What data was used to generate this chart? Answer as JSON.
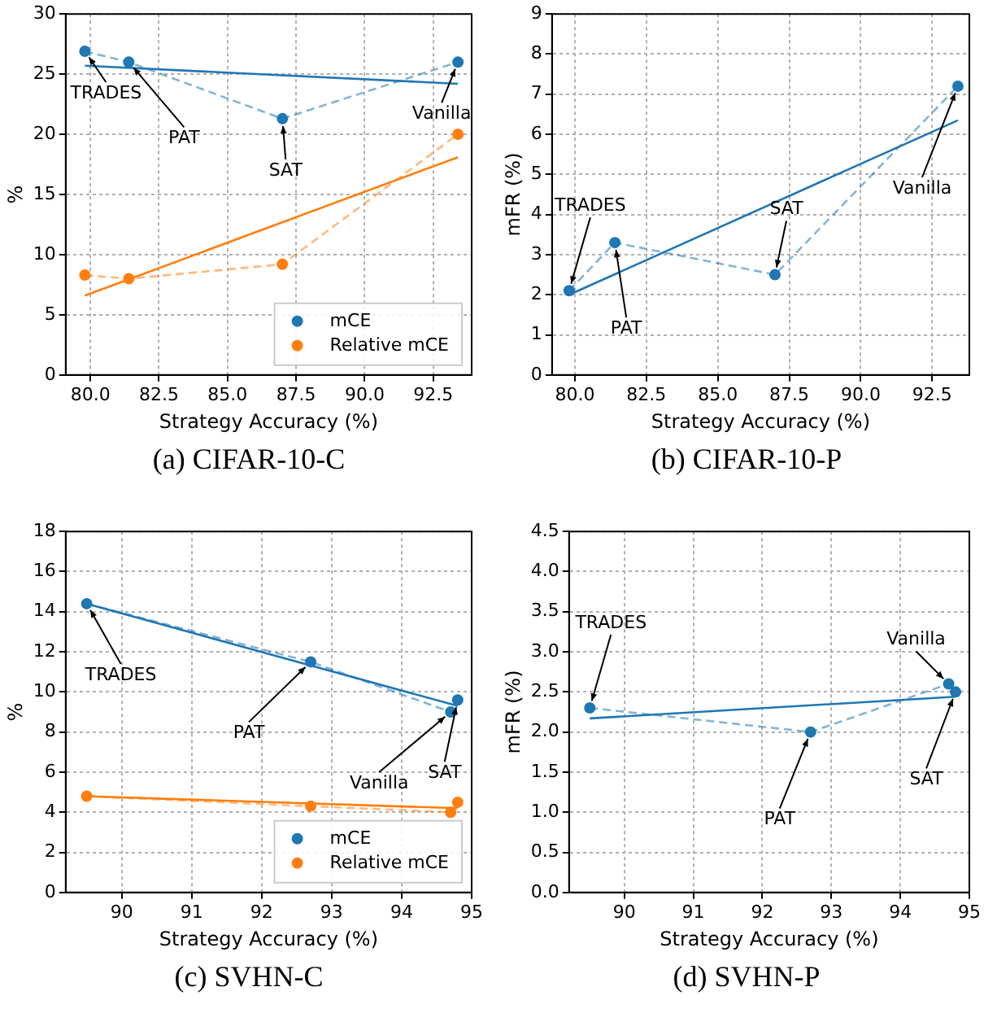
{
  "chart_data": [
    {
      "type": "line",
      "title": "(a) CIFAR-10-C",
      "xlabel": "Strategy Accuracy (%)",
      "ylabel": "%",
      "xlim": [
        79.1,
        93.9
      ],
      "xticks": [
        {
          "value": 80,
          "label": "80.0"
        },
        {
          "value": 82.5,
          "label": "82.5"
        },
        {
          "value": 85,
          "label": "85.0"
        },
        {
          "value": 87.5,
          "label": "87.5"
        },
        {
          "value": 90,
          "label": "90.0"
        },
        {
          "value": 92.5,
          "label": "92.5"
        }
      ],
      "ylim": [
        0,
        30
      ],
      "yticks": [
        0,
        5,
        10,
        15,
        20,
        25,
        30
      ],
      "grid": true,
      "legend": "bottom right",
      "series": [
        {
          "name": "mCE",
          "color": "#1f77b4",
          "x": [
            79.8,
            81.4,
            87.0,
            93.4
          ],
          "values": [
            26.9,
            26.0,
            21.3,
            26.0
          ],
          "line_style": "dashed",
          "marker": "circle"
        },
        {
          "name": "Relative mCE",
          "color": "#ff7f0e",
          "x": [
            79.8,
            81.4,
            87.0,
            93.4
          ],
          "values": [
            8.3,
            8.0,
            9.2,
            20.0
          ],
          "line_style": "dashed",
          "marker": "circle"
        },
        {
          "color": "#1f77b4",
          "x": [
            79.8,
            93.4
          ],
          "values": [
            25.7,
            24.2
          ],
          "line_style": "solid",
          "marker": "none"
        },
        {
          "color": "#ff7f0e",
          "x": [
            79.8,
            93.4
          ],
          "values": [
            6.6,
            18.1
          ],
          "line_style": "solid",
          "marker": "none"
        }
      ],
      "annotations": [
        {
          "text": "TRADES",
          "x": 79.8,
          "y": 26.9
        },
        {
          "text": "PAT",
          "x": 81.4,
          "y": 26.0
        },
        {
          "text": "SAT",
          "x": 87.0,
          "y": 21.3
        },
        {
          "text": "Vanilla",
          "x": 93.4,
          "y": 26.0
        }
      ]
    },
    {
      "type": "line",
      "title": "(b) CIFAR-10-P",
      "xlabel": "Strategy Accuracy (%)",
      "ylabel": "mFR (%)",
      "xlim": [
        79.2,
        93.8
      ],
      "xticks": [
        {
          "value": 80,
          "label": "80.0"
        },
        {
          "value": 82.5,
          "label": "82.5"
        },
        {
          "value": 85,
          "label": "85.0"
        },
        {
          "value": 87.5,
          "label": "87.5"
        },
        {
          "value": 90,
          "label": "90.0"
        },
        {
          "value": 92.5,
          "label": "92.5"
        }
      ],
      "ylim": [
        0,
        9
      ],
      "yticks": [
        0,
        1,
        2,
        3,
        4,
        5,
        6,
        7,
        8,
        9
      ],
      "grid": true,
      "series": [
        {
          "color": "#1f77b4",
          "x": [
            79.8,
            81.4,
            87.0,
            93.4
          ],
          "values": [
            2.1,
            3.3,
            2.5,
            7.2
          ],
          "line_style": "dashed",
          "marker": "circle"
        },
        {
          "color": "#1f77b4",
          "x": [
            79.8,
            93.4
          ],
          "values": [
            2.0,
            6.35
          ],
          "line_style": "solid",
          "marker": "none"
        }
      ],
      "annotations": [
        {
          "text": "TRADES",
          "x": 79.8,
          "y": 2.1
        },
        {
          "text": "PAT",
          "x": 81.4,
          "y": 3.3
        },
        {
          "text": "SAT",
          "x": 87.0,
          "y": 2.5
        },
        {
          "text": "Vanilla",
          "x": 93.4,
          "y": 7.2
        }
      ]
    },
    {
      "type": "line",
      "title": "(c) SVHN-C",
      "xlabel": "Strategy Accuracy (%)",
      "ylabel": "%",
      "xlim": [
        89.2,
        95
      ],
      "xticks": [
        90,
        91,
        92,
        93,
        94,
        95
      ],
      "ylim": [
        0,
        18
      ],
      "yticks": [
        0,
        2,
        4,
        6,
        8,
        10,
        12,
        14,
        16,
        18
      ],
      "grid": true,
      "legend": "bottom right",
      "series": [
        {
          "name": "mCE",
          "color": "#1f77b4",
          "x": [
            89.5,
            92.7,
            94.7,
            94.8
          ],
          "values": [
            14.4,
            11.5,
            9.0,
            9.6
          ],
          "line_style": "dashed",
          "marker": "circle"
        },
        {
          "name": "Relative mCE",
          "color": "#ff7f0e",
          "x": [
            89.5,
            92.7,
            94.7,
            94.8
          ],
          "values": [
            4.8,
            4.3,
            4.0,
            4.5
          ],
          "line_style": "dashed",
          "marker": "circle"
        },
        {
          "color": "#1f77b4",
          "x": [
            89.5,
            94.8
          ],
          "values": [
            14.4,
            9.3
          ],
          "line_style": "solid",
          "marker": "none"
        },
        {
          "color": "#ff7f0e",
          "x": [
            89.5,
            94.8
          ],
          "values": [
            4.8,
            4.2
          ],
          "line_style": "solid",
          "marker": "none"
        }
      ],
      "annotations": [
        {
          "text": "TRADES",
          "x": 89.5,
          "y": 14.4
        },
        {
          "text": "PAT",
          "x": 92.7,
          "y": 11.5
        },
        {
          "text": "Vanilla",
          "x": 94.7,
          "y": 9.0
        },
        {
          "text": "SAT",
          "x": 94.8,
          "y": 9.6
        }
      ]
    },
    {
      "type": "line",
      "title": "(d) SVHN-P",
      "xlabel": "Strategy Accuracy (%)",
      "ylabel": "mFR (%)",
      "xlim": [
        89.2,
        95
      ],
      "xticks": [
        90,
        91,
        92,
        93,
        94,
        95
      ],
      "ylim": [
        0,
        4.5
      ],
      "yticks": [
        {
          "value": 0,
          "label": "0.0"
        },
        {
          "value": 0.5,
          "label": "0.5"
        },
        {
          "value": 1,
          "label": "1.0"
        },
        {
          "value": 1.5,
          "label": "1.5"
        },
        {
          "value": 2,
          "label": "2.0"
        },
        {
          "value": 2.5,
          "label": "2.5"
        },
        {
          "value": 3,
          "label": "3.0"
        },
        {
          "value": 3.5,
          "label": "3.5"
        },
        {
          "value": 4,
          "label": "4.0"
        },
        {
          "value": 4.5,
          "label": "4.5"
        }
      ],
      "grid": true,
      "series": [
        {
          "color": "#1f77b4",
          "x": [
            89.5,
            92.7,
            94.7,
            94.8
          ],
          "values": [
            2.3,
            2.0,
            2.6,
            2.5
          ],
          "line_style": "dashed",
          "marker": "circle"
        },
        {
          "color": "#1f77b4",
          "x": [
            89.5,
            94.8
          ],
          "values": [
            2.17,
            2.44
          ],
          "line_style": "solid",
          "marker": "none"
        }
      ],
      "annotations": [
        {
          "text": "TRADES",
          "x": 89.5,
          "y": 2.3
        },
        {
          "text": "PAT",
          "x": 92.7,
          "y": 2.0
        },
        {
          "text": "Vanilla",
          "x": 94.7,
          "y": 2.6
        },
        {
          "text": "SAT",
          "x": 94.8,
          "y": 2.5
        }
      ]
    }
  ]
}
